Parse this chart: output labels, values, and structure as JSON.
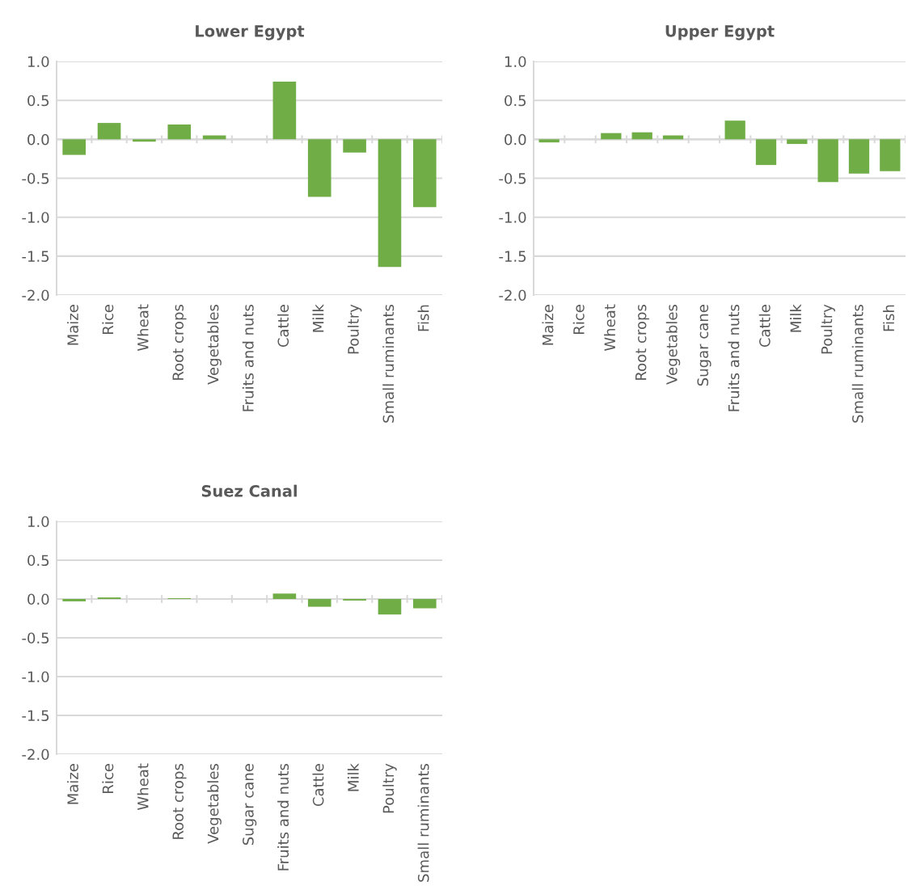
{
  "chart_data": [
    {
      "type": "bar",
      "title": "Lower Egypt",
      "categories": [
        "Maize",
        "Rice",
        "Wheat",
        "Root crops",
        "Vegetables",
        "Fruits and nuts",
        "Cattle",
        "Milk",
        "Poultry",
        "Small ruminants",
        "Fish"
      ],
      "values": [
        -0.2,
        0.21,
        -0.03,
        0.19,
        0.05,
        0,
        0.74,
        -0.74,
        -0.17,
        -1.64,
        -0.87
      ],
      "color": "#70ad47",
      "ylim": [
        -2.0,
        1.0
      ],
      "yticks": [
        {
          "value": -2.0,
          "label": "-2.0"
        },
        {
          "value": -1.5,
          "label": "-1.5"
        },
        {
          "value": -1.0,
          "label": "-1.0"
        },
        {
          "value": -0.5,
          "label": "-0.5"
        },
        {
          "value": 0.0,
          "label": "0.0"
        },
        {
          "value": 0.5,
          "label": "0.5"
        },
        {
          "value": 1.0,
          "label": "1.0"
        }
      ],
      "grid": "y"
    },
    {
      "type": "bar",
      "title": "Upper Egypt",
      "categories": [
        "Maize",
        "Rice",
        "Wheat",
        "Root crops",
        "Vegetables",
        "Sugar cane",
        "Fruits and nuts",
        "Cattle",
        "Milk",
        "Poultry",
        "Small ruminants",
        "Fish"
      ],
      "values": [
        -0.04,
        0,
        0.08,
        0.09,
        0.05,
        0,
        0.24,
        -0.33,
        -0.06,
        -0.55,
        -0.44,
        -0.41
      ],
      "color": "#70ad47",
      "ylim": [
        -2.0,
        1.0
      ],
      "yticks": [
        {
          "value": -2.0,
          "label": "-2.0"
        },
        {
          "value": -1.5,
          "label": "-1.5"
        },
        {
          "value": -1.0,
          "label": "-1.0"
        },
        {
          "value": -0.5,
          "label": "-0.5"
        },
        {
          "value": 0.0,
          "label": "0.0"
        },
        {
          "value": 0.5,
          "label": "0.5"
        },
        {
          "value": 1.0,
          "label": "1.0"
        }
      ],
      "grid": "y"
    },
    {
      "type": "bar",
      "title": "Suez Canal",
      "categories": [
        "Maize",
        "Rice",
        "Wheat",
        "Root crops",
        "Vegetables",
        "Sugar cane",
        "Fruits and nuts",
        "Cattle",
        "Milk",
        "Poultry",
        "Small ruminants"
      ],
      "values": [
        -0.03,
        0.02,
        0,
        0.01,
        0,
        0,
        0.07,
        -0.1,
        -0.02,
        -0.2,
        -0.12
      ],
      "color": "#70ad47",
      "ylim": [
        -2.0,
        1.0
      ],
      "yticks": [
        {
          "value": -2.0,
          "label": "-2.0"
        },
        {
          "value": -1.5,
          "label": "-1.5"
        },
        {
          "value": -1.0,
          "label": "-1.0"
        },
        {
          "value": -0.5,
          "label": "-0.5"
        },
        {
          "value": 0.0,
          "label": "0.0"
        },
        {
          "value": 0.5,
          "label": "0.5"
        },
        {
          "value": 1.0,
          "label": "1.0"
        }
      ],
      "grid": "y"
    }
  ]
}
